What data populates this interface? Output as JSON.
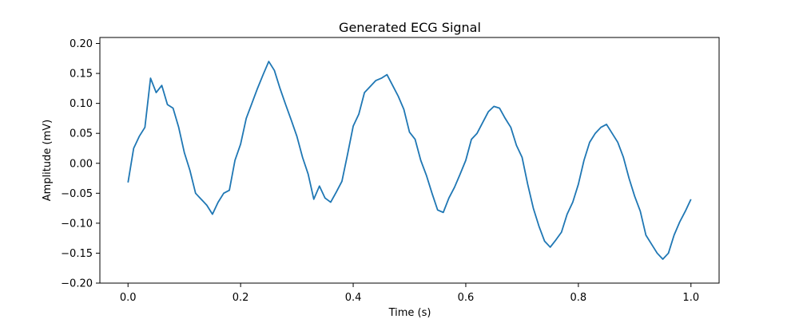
{
  "chart_data": {
    "type": "line",
    "title": "Generated ECG Signal",
    "xlabel": "Time (s)",
    "ylabel": "Amplitude (mV)",
    "xlim": [
      -0.05,
      1.05
    ],
    "ylim": [
      -0.2,
      0.21
    ],
    "xticks": [
      0.0,
      0.2,
      0.4,
      0.6,
      0.8,
      1.0
    ],
    "xtick_labels": [
      "0.0",
      "0.2",
      "0.4",
      "0.6",
      "0.8",
      "1.0"
    ],
    "yticks": [
      0.2,
      0.15,
      0.1,
      0.05,
      0.0,
      -0.05,
      -0.1,
      -0.15,
      -0.2
    ],
    "ytick_labels": [
      "0.20",
      "0.15",
      "0.10",
      "0.05",
      "0.00",
      "−0.05",
      "−0.10",
      "−0.15",
      "−0.20"
    ],
    "grid": false,
    "legend": "none",
    "colors": {
      "line": "#1f77b4",
      "axis": "#000000"
    },
    "series": [
      {
        "x": [
          0.0,
          0.01,
          0.02,
          0.03,
          0.04,
          0.05,
          0.06,
          0.07,
          0.08,
          0.09,
          0.1,
          0.11,
          0.12,
          0.13,
          0.14,
          0.15,
          0.16,
          0.17,
          0.18,
          0.19,
          0.2,
          0.21,
          0.22,
          0.23,
          0.24,
          0.25,
          0.26,
          0.27,
          0.28,
          0.29,
          0.3,
          0.31,
          0.32,
          0.33,
          0.34,
          0.35,
          0.36,
          0.37,
          0.38,
          0.39,
          0.4,
          0.41,
          0.42,
          0.43,
          0.44,
          0.45,
          0.46,
          0.47,
          0.48,
          0.49,
          0.5,
          0.51,
          0.52,
          0.53,
          0.54,
          0.55,
          0.56,
          0.57,
          0.58,
          0.59,
          0.6,
          0.61,
          0.62,
          0.63,
          0.64,
          0.65,
          0.66,
          0.67,
          0.68,
          0.69,
          0.7,
          0.71,
          0.72,
          0.73,
          0.74,
          0.75,
          0.76,
          0.77,
          0.78,
          0.79,
          0.8,
          0.81,
          0.82,
          0.83,
          0.84,
          0.85,
          0.86,
          0.87,
          0.88,
          0.89,
          0.9,
          0.91,
          0.92,
          0.93,
          0.94,
          0.95,
          0.96,
          0.97,
          0.98,
          0.99,
          1.0
        ],
        "y": [
          -0.032,
          0.025,
          0.045,
          0.06,
          0.142,
          0.118,
          0.13,
          0.098,
          0.092,
          0.06,
          0.018,
          -0.012,
          -0.05,
          -0.06,
          -0.07,
          -0.085,
          -0.065,
          -0.05,
          -0.045,
          0.005,
          0.032,
          0.075,
          0.1,
          0.125,
          0.148,
          0.17,
          0.155,
          0.125,
          0.098,
          0.072,
          0.045,
          0.01,
          -0.018,
          -0.06,
          -0.038,
          -0.058,
          -0.065,
          -0.048,
          -0.03,
          0.015,
          0.062,
          0.082,
          0.118,
          0.128,
          0.138,
          0.142,
          0.148,
          0.13,
          0.112,
          0.09,
          0.052,
          0.04,
          0.005,
          -0.02,
          -0.05,
          -0.078,
          -0.082,
          -0.058,
          -0.04,
          -0.018,
          0.005,
          0.04,
          0.05,
          0.068,
          0.086,
          0.095,
          0.092,
          0.075,
          0.06,
          0.03,
          0.01,
          -0.035,
          -0.075,
          -0.105,
          -0.13,
          -0.14,
          -0.128,
          -0.115,
          -0.085,
          -0.065,
          -0.035,
          0.005,
          0.035,
          0.05,
          0.06,
          0.065,
          0.05,
          0.035,
          0.01,
          -0.025,
          -0.055,
          -0.08,
          -0.12,
          -0.135,
          -0.15,
          -0.16,
          -0.15,
          -0.12,
          -0.098,
          -0.08,
          -0.06
        ]
      }
    ]
  }
}
